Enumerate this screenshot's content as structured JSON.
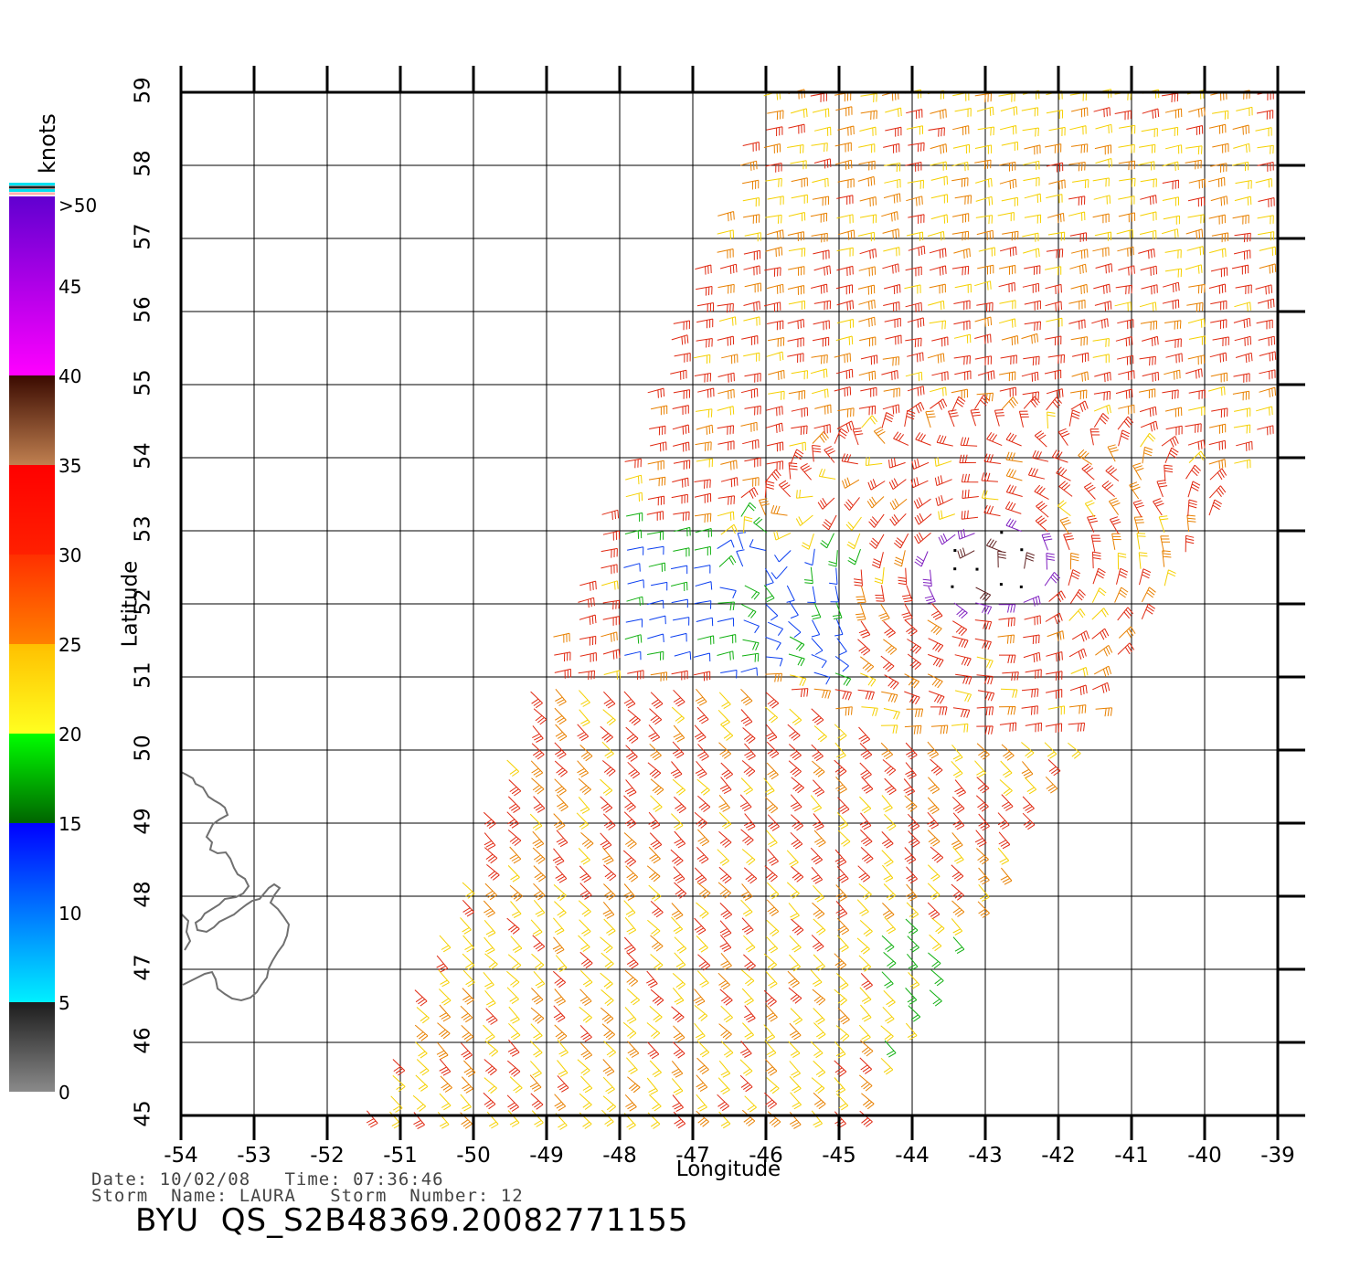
{
  "map": {
    "xlabel": "Longitude",
    "ylabel": "Latitude",
    "lon_range": [
      -54,
      -39
    ],
    "lat_range": [
      45,
      59
    ],
    "lon_ticks": [
      "-54",
      "-53",
      "-52",
      "-51",
      "-50",
      "-49",
      "-48",
      "-47",
      "-46",
      "-45",
      "-44",
      "-43",
      "-42",
      "-41",
      "-40",
      "-39"
    ],
    "lat_ticks": [
      "45",
      "46",
      "47",
      "48",
      "49",
      "50",
      "51",
      "52",
      "53",
      "54",
      "55",
      "56",
      "57",
      "58",
      "59"
    ],
    "grid": true,
    "coastline_region": "Newfoundland (partial)",
    "coastline_color": "#707070"
  },
  "legend": {
    "title": "knots",
    "labels": [
      ">50",
      "45",
      "40",
      "35",
      "30",
      "25",
      "20",
      "15",
      "10",
      "5",
      "0"
    ],
    "bins": [
      {
        "from": 0,
        "to": 5,
        "colors": [
          "#8a8a8a",
          "#1c1c1c"
        ]
      },
      {
        "from": 5,
        "to": 15,
        "colors": [
          "#00f0ff",
          "#0000ff"
        ]
      },
      {
        "from": 15,
        "to": 20,
        "colors": [
          "#006400",
          "#00ff00"
        ]
      },
      {
        "from": 20,
        "to": 25,
        "colors": [
          "#ffff20",
          "#ffc000"
        ]
      },
      {
        "from": 25,
        "to": 30,
        "colors": [
          "#ff8000",
          "#ff3000"
        ]
      },
      {
        "from": 30,
        "to": 35,
        "colors": [
          "#ff2000",
          "#ff0000"
        ]
      },
      {
        "from": 35,
        "to": 40,
        "colors": [
          "#c08050",
          "#3a0a00"
        ]
      },
      {
        "from": 40,
        "to": 50,
        "colors": [
          "#ff00ff",
          "#6000d0"
        ]
      }
    ],
    "top_stripes": [
      "#00e0f0",
      "#202020",
      "#00e0f0",
      "#ffb0b0"
    ]
  },
  "wind_colors": {
    "blue": "#0a3ef0",
    "green": "#10b010",
    "yellow": "#f5d000",
    "orange": "#e88000",
    "red": "#e02810",
    "brown": "#602020",
    "purple": "#8020c0"
  },
  "storm": {
    "center_lon": -42.9,
    "center_lat": 52.5
  },
  "footer": {
    "line1": "Date: 10/02/08   Time: 07:36:46",
    "line2": "Storm  Name: LAURA   Storm  Number: 12",
    "product": "BYU  QS_S2B48369.20082771155"
  }
}
